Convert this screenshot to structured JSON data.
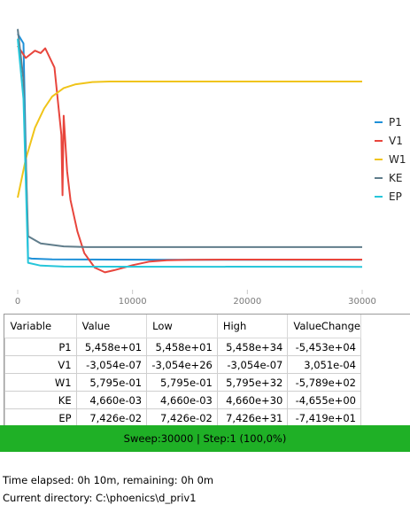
{
  "chart_data": {
    "type": "line",
    "xlim": [
      0,
      30000
    ],
    "x_ticks": [
      0,
      10000,
      20000,
      30000
    ],
    "legend_position": "right",
    "series": [
      {
        "name": "P1",
        "color": "#1e90d8",
        "points": [
          [
            0,
            0.97
          ],
          [
            500,
            0.93
          ],
          [
            900,
            0.04
          ],
          [
            1200,
            0.037
          ],
          [
            3000,
            0.034
          ],
          [
            8000,
            0.033
          ],
          [
            15000,
            0.032
          ],
          [
            30000,
            0.032
          ]
        ]
      },
      {
        "name": "V1",
        "color": "#e8453c",
        "points": [
          [
            0,
            0.92
          ],
          [
            700,
            0.87
          ],
          [
            1500,
            0.9
          ],
          [
            2000,
            0.89
          ],
          [
            2400,
            0.91
          ],
          [
            3200,
            0.83
          ],
          [
            3800,
            0.55
          ],
          [
            3900,
            0.3
          ],
          [
            4000,
            0.63
          ],
          [
            4300,
            0.4
          ],
          [
            4600,
            0.28
          ],
          [
            5200,
            0.15
          ],
          [
            5800,
            0.06
          ],
          [
            6700,
            0.0
          ],
          [
            7600,
            -0.02
          ],
          [
            8500,
            -0.01
          ],
          [
            10000,
            0.01
          ],
          [
            11500,
            0.025
          ],
          [
            13000,
            0.03
          ],
          [
            15000,
            0.032
          ],
          [
            18000,
            0.033
          ],
          [
            30000,
            0.033
          ]
        ]
      },
      {
        "name": "W1",
        "color": "#f0c419",
        "points": [
          [
            0,
            0.29
          ],
          [
            700,
            0.45
          ],
          [
            1500,
            0.58
          ],
          [
            2300,
            0.66
          ],
          [
            3000,
            0.71
          ],
          [
            4000,
            0.745
          ],
          [
            5000,
            0.76
          ],
          [
            6500,
            0.77
          ],
          [
            8000,
            0.772
          ],
          [
            30000,
            0.772
          ]
        ]
      },
      {
        "name": "KE",
        "color": "#607d8b",
        "points": [
          [
            0,
            0.99
          ],
          [
            500,
            0.78
          ],
          [
            900,
            0.13
          ],
          [
            2000,
            0.1
          ],
          [
            4000,
            0.088
          ],
          [
            6000,
            0.085
          ],
          [
            30000,
            0.085
          ]
        ]
      },
      {
        "name": "EP",
        "color": "#26c6da",
        "points": [
          [
            0,
            0.95
          ],
          [
            500,
            0.7
          ],
          [
            900,
            0.02
          ],
          [
            2000,
            0.008
          ],
          [
            4000,
            0.004
          ],
          [
            30000,
            0.003
          ]
        ]
      }
    ]
  },
  "table": {
    "headers": [
      "Variable",
      "Value",
      "Low",
      "High",
      "ValueChange"
    ],
    "rows": [
      [
        "P1",
        "5,458e+01",
        "5,458e+01",
        "5,458e+34",
        "-5,453e+04"
      ],
      [
        "V1",
        "-3,054e-07",
        "-3,054e+26",
        "-3,054e-07",
        "3,051e-04"
      ],
      [
        "W1",
        "5,795e-01",
        "5,795e-01",
        "5,795e+32",
        "-5,789e+02"
      ],
      [
        "KE",
        "4,660e-03",
        "4,660e-03",
        "4,660e+30",
        "-4,655e+00"
      ],
      [
        "EP",
        "7,426e-02",
        "7,426e-02",
        "7,426e+31",
        "-7,419e+01"
      ]
    ]
  },
  "status": {
    "text": "Sweep:30000 | Step:1  (100,0%)",
    "color": "#1fb026"
  },
  "info": {
    "time": "Time elapsed: 0h 10m, remaining: 0h 0m",
    "directory": "Current directory:  C:\\phoenics\\d_priv1"
  }
}
